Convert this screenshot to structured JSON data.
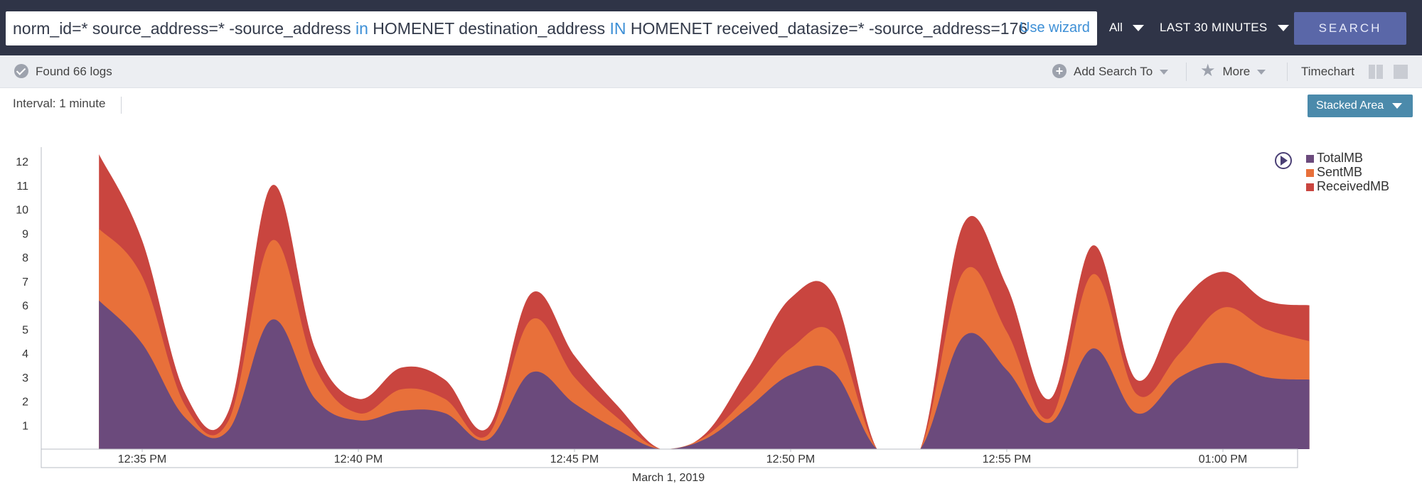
{
  "search": {
    "query_parts": [
      {
        "text": "norm_id=* source_address=* -source_address ",
        "kw": false
      },
      {
        "text": "in",
        "kw": true
      },
      {
        "text": " HOMENET destination_address ",
        "kw": false
      },
      {
        "text": "IN",
        "kw": true
      },
      {
        "text": " HOMENET received_datasize=* -source_address=176",
        "kw": false
      }
    ],
    "use_wizard_label": "Use wizard",
    "scope_label": "All",
    "time_range_label": "LAST 30 MINUTES",
    "search_button_label": "SEARCH"
  },
  "toolbar": {
    "found_label": "Found 66 logs",
    "add_search_label": "Add Search To",
    "more_label": "More",
    "timechart_label": "Timechart"
  },
  "interval_label": "Interval: 1 minute",
  "chart_mode_label": "Stacked Area",
  "colors": {
    "total": "#6b4a7c",
    "sent": "#e8703a",
    "received": "#c9453f"
  },
  "chart_data": {
    "type": "area",
    "stacked": true,
    "xlabel": "March 1, 2019",
    "x_ticks": [
      "12:35 PM",
      "12:40 PM",
      "12:45 PM",
      "12:50 PM",
      "12:55 PM",
      "01:00 PM"
    ],
    "y_ticks": [
      1,
      2,
      3,
      4,
      5,
      6,
      7,
      8,
      9,
      10,
      11,
      12
    ],
    "ylim": [
      0,
      12.6
    ],
    "x_minutes": [
      34,
      35,
      36,
      37,
      38,
      39,
      40,
      41,
      42,
      43,
      44,
      45,
      46,
      47,
      48,
      49,
      50,
      51,
      52,
      53,
      54,
      55,
      56,
      57,
      58,
      59,
      60,
      61,
      62
    ],
    "legend_position": "top-right",
    "series": [
      {
        "name": "TotalMB",
        "values": [
          6.2,
          4.4,
          1.3,
          0.8,
          5.4,
          2.1,
          1.2,
          1.6,
          1.5,
          0.4,
          3.2,
          1.9,
          0.8,
          0,
          0.4,
          1.7,
          3.1,
          3.2,
          0,
          0,
          4.7,
          3.3,
          1.1,
          4.2,
          1.5,
          3.0,
          3.6,
          3.0,
          2.9
        ]
      },
      {
        "name": "SentMB",
        "values": [
          3.0,
          2.8,
          0.5,
          0.4,
          3.3,
          1.3,
          0.3,
          0.9,
          0.6,
          0.2,
          2.2,
          1.1,
          0.5,
          0,
          0.1,
          0.5,
          1.1,
          1.6,
          0,
          0,
          2.7,
          1.6,
          0.2,
          3.1,
          0.8,
          1.0,
          2.3,
          2.0,
          1.6
        ]
      },
      {
        "name": "ReceivedMB",
        "values": [
          3.1,
          1.5,
          0.5,
          0.4,
          2.3,
          0.8,
          0.6,
          0.9,
          0.8,
          0.3,
          1.1,
          0.9,
          0.5,
          0,
          0.1,
          1.1,
          2.1,
          1.6,
          0,
          0,
          2.0,
          1.9,
          0.8,
          1.2,
          0.6,
          2.0,
          1.5,
          1.2,
          1.5
        ]
      }
    ]
  }
}
